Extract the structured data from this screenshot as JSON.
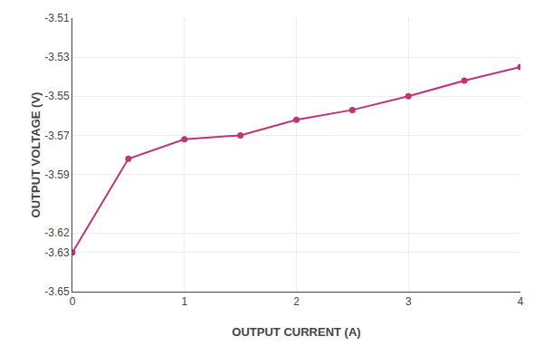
{
  "chart_data": {
    "type": "line",
    "xlabel": "OUTPUT CURRENT (A)",
    "ylabel": "OUTPUT VOLTAGE (V)",
    "x": [
      0,
      0.5,
      1.0,
      1.5,
      2.0,
      2.5,
      3.0,
      3.5,
      4.0
    ],
    "values": [
      -3.63,
      -3.582,
      -3.572,
      -3.57,
      -3.562,
      -3.557,
      -3.55,
      -3.542,
      -3.535
    ],
    "color": "#be3474",
    "marker": "circle",
    "xlim": [
      0,
      4
    ],
    "ylim": [
      -3.65,
      -3.51
    ],
    "xticks": [
      0,
      1,
      2,
      3,
      4
    ],
    "yticks": [
      -3.65,
      -3.63,
      -3.62,
      -3.59,
      -3.57,
      -3.55,
      -3.53,
      -3.51
    ],
    "grid": true
  }
}
